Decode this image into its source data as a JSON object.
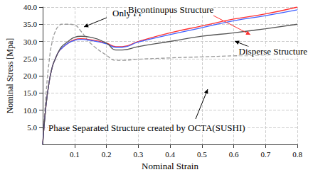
{
  "chart_data": {
    "type": "line",
    "x_label": "Nominal Strain",
    "y_label": "Nominal Stress [Mpa]",
    "xlim": [
      0,
      0.8
    ],
    "xticks": [
      0.1,
      0.2,
      0.3,
      0.4,
      0.5,
      0.6,
      0.7,
      0.8
    ],
    "ylim": [
      0,
      40
    ],
    "yticks": [
      {
        "value": 5,
        "label": "5.0"
      },
      {
        "value": 10,
        "label": "10.0"
      },
      {
        "value": 15,
        "label": "15.0"
      },
      {
        "value": 20,
        "label": "20.0"
      },
      {
        "value": 25,
        "label": "25.0"
      },
      {
        "value": 30,
        "label": "30.0"
      },
      {
        "value": 35,
        "label": "35.0"
      },
      {
        "value": 40,
        "label": "40.0"
      }
    ],
    "grid": true,
    "x": [
      0,
      0.01,
      0.02,
      0.03,
      0.04,
      0.05,
      0.06,
      0.08,
      0.1,
      0.12,
      0.15,
      0.2,
      0.23,
      0.25,
      0.3,
      0.4,
      0.5,
      0.6,
      0.7,
      0.8
    ],
    "series": [
      {
        "name": "Only PP",
        "color": "#999999",
        "line_style": "dashed",
        "values": [
          0,
          14,
          24,
          30,
          33,
          34.5,
          35,
          35,
          34.8,
          33,
          29.5,
          26,
          24.5,
          24.5,
          24.8,
          25.2,
          25.5,
          25.8,
          26,
          26.5
        ]
      },
      {
        "name": "Bicontinupus Structure",
        "color": "#ff3030",
        "line_style": "solid",
        "values": [
          0,
          11,
          18,
          22.5,
          25,
          27,
          28,
          29.5,
          30.5,
          30.8,
          30.5,
          29.5,
          28.5,
          28.5,
          30,
          32.5,
          34.5,
          36.5,
          38,
          40
        ]
      },
      {
        "name": "Disperse Structure",
        "color": "#4060ff",
        "line_style": "solid",
        "values": [
          0,
          11,
          18,
          22.5,
          25,
          27,
          28,
          29.5,
          30.3,
          30.6,
          30.3,
          29.3,
          28.3,
          28.3,
          29.8,
          32,
          34,
          36,
          37.5,
          39.2
        ]
      },
      {
        "name": "Phase Separated Structure created by OCTA(SUSHI)",
        "color": "#555555",
        "line_style": "solid",
        "values": [
          0,
          11,
          18,
          22.5,
          25,
          27,
          28.5,
          30,
          31.2,
          31.5,
          31.2,
          29.5,
          27.5,
          27.5,
          28.5,
          30,
          31.5,
          32.5,
          33.7,
          35
        ]
      }
    ]
  }
}
